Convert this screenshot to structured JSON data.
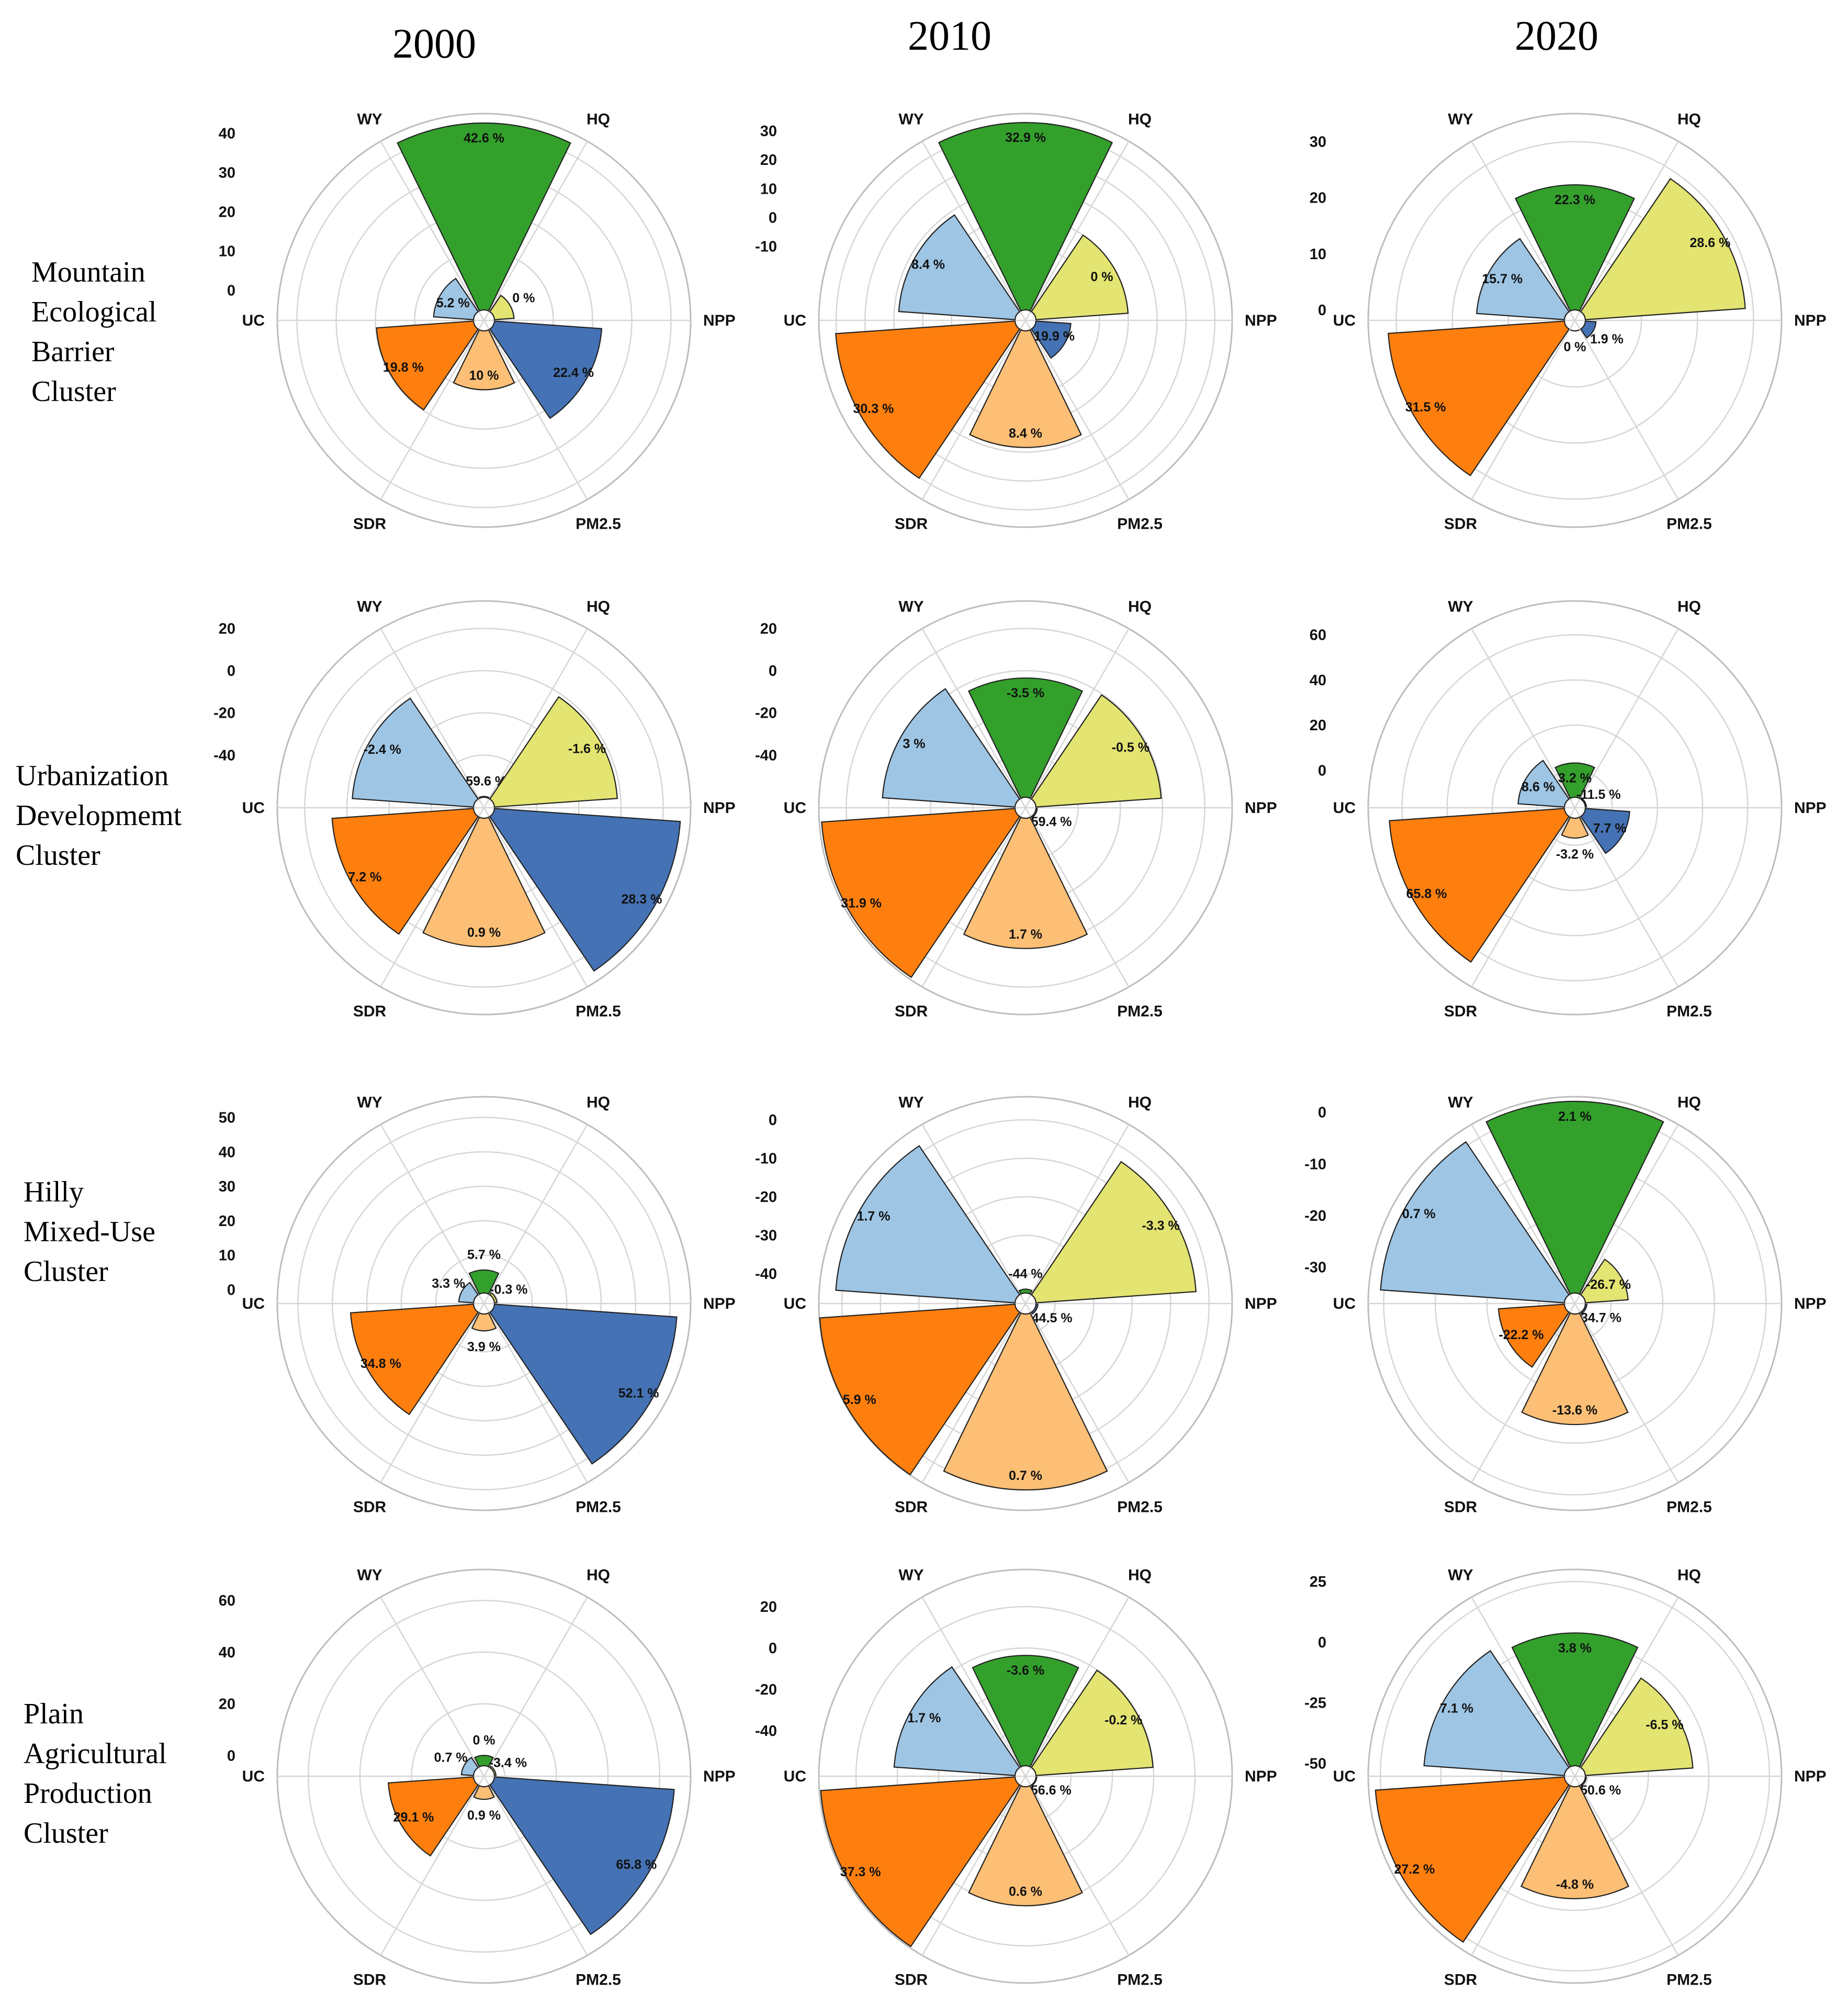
{
  "years": [
    "2000",
    "2010",
    "2020"
  ],
  "clusters": [
    {
      "label_lines": [
        "Mountain",
        "Ecological",
        "Barrier",
        "Cluster"
      ]
    },
    {
      "label_lines": [
        "Urbanization",
        "Developmemt",
        "Cluster"
      ]
    },
    {
      "label_lines": [
        "Hilly",
        "Mixed-Use",
        "Cluster"
      ]
    },
    {
      "label_lines": [
        "Plain",
        "Agricultural",
        "Production",
        "Cluster"
      ]
    }
  ],
  "colors": {
    "HQ": "#33a02c",
    "NPP": "#e3e471",
    "PM2.5": "#4572b4",
    "SDR": "#fcbf75",
    "UC": "#ff7f0e",
    "WY": "#9ec5e4"
  },
  "chart_data": [
    {
      "cluster": 0,
      "year": "2000",
      "type": "polar-bar",
      "axis_labels": [
        "HQ",
        "NPP",
        "PM2.5",
        "SDR",
        "UC",
        "WY"
      ],
      "values": [
        42.6,
        0,
        22.4,
        10,
        19.8,
        5.2
      ],
      "value_labels": [
        "42.6 %",
        "0 %",
        "22.4 %",
        "10 %",
        "19.8 %",
        "5.2 %"
      ],
      "radial_range": [
        -5,
        45
      ],
      "radial_ticks": [
        0,
        10,
        20,
        30,
        40
      ],
      "radial_tick_labels": [
        "0",
        "10",
        "20",
        "30",
        "40"
      ]
    },
    {
      "cluster": 0,
      "year": "2010",
      "type": "polar-bar",
      "axis_labels": [
        "HQ",
        "NPP",
        "PM2.5",
        "SDR",
        "UC",
        "WY"
      ],
      "values": [
        32.9,
        0,
        -19.9,
        8.4,
        30.3,
        8.4
      ],
      "value_labels": [
        "32.9 %",
        "0 %",
        "-19.9 %",
        "8.4 %",
        "30.3 %",
        "8.4 %"
      ],
      "radial_range": [
        -32,
        36
      ],
      "radial_ticks": [
        -10,
        0,
        10,
        20,
        30
      ],
      "radial_tick_labels": [
        "-10",
        "0",
        "10",
        "20",
        "30"
      ]
    },
    {
      "cluster": 0,
      "year": "2020",
      "type": "polar-bar",
      "axis_labels": [
        "HQ",
        "NPP",
        "PM2.5",
        "SDR",
        "UC",
        "WY"
      ],
      "values": [
        22.3,
        28.6,
        1.9,
        0,
        31.5,
        15.7
      ],
      "value_labels": [
        "22.3 %",
        "28.6 %",
        "1.9 %",
        "0 %",
        "31.5 %",
        "15.7 %"
      ],
      "radial_range": [
        0,
        35
      ],
      "radial_ticks": [
        0,
        10,
        20,
        30
      ],
      "radial_tick_labels": [
        "0",
        "10",
        "20",
        "30"
      ]
    },
    {
      "cluster": 1,
      "year": "2000",
      "type": "polar-bar",
      "axis_labels": [
        "HQ",
        "NPP",
        "PM2.5",
        "SDR",
        "UC",
        "WY"
      ],
      "values": [
        -59.6,
        -1.6,
        28.3,
        0.9,
        7.2,
        -2.4
      ],
      "value_labels": [
        "-59.6 %",
        "-1.6 %",
        "28.3 %",
        "0.9 %",
        "7.2 %",
        "-2.4 %"
      ],
      "radial_range": [
        -60,
        33
      ],
      "radial_ticks": [
        -40,
        -20,
        0,
        20
      ],
      "radial_tick_labels": [
        "-40",
        "-20",
        "0",
        "20"
      ]
    },
    {
      "cluster": 1,
      "year": "2010",
      "type": "polar-bar",
      "axis_labels": [
        "HQ",
        "NPP",
        "PM2.5",
        "SDR",
        "UC",
        "WY"
      ],
      "values": [
        -3.5,
        -0.5,
        -59.4,
        1.7,
        31.9,
        3
      ],
      "value_labels": [
        "-3.5 %",
        "-0.5 %",
        "-59.4 %",
        "1.7 %",
        "31.9 %",
        "3 %"
      ],
      "radial_range": [
        -60,
        33
      ],
      "radial_ticks": [
        -40,
        -20,
        0,
        20
      ],
      "radial_tick_labels": [
        "-40",
        "-20",
        "0",
        "20"
      ]
    },
    {
      "cluster": 1,
      "year": "2020",
      "type": "polar-bar",
      "axis_labels": [
        "HQ",
        "NPP",
        "PM2.5",
        "SDR",
        "UC",
        "WY"
      ],
      "values": [
        3.2,
        -11.5,
        7.7,
        -3.2,
        65.8,
        8.6
      ],
      "value_labels": [
        "3.2 %",
        "-11.5 %",
        "7.7 %",
        "-3.2 %",
        "65.8 %",
        "8.6 %"
      ],
      "radial_range": [
        -12,
        75
      ],
      "radial_ticks": [
        0,
        20,
        40,
        60
      ],
      "radial_tick_labels": [
        "0",
        "20",
        "40",
        "60"
      ]
    },
    {
      "cluster": 2,
      "year": "2000",
      "type": "polar-bar",
      "axis_labels": [
        "HQ",
        "NPP",
        "PM2.5",
        "SDR",
        "UC",
        "WY"
      ],
      "values": [
        5.7,
        -0.3,
        52.1,
        3.9,
        34.8,
        3.3
      ],
      "value_labels": [
        "5.7 %",
        "-0.3 %",
        "52.1 %",
        "3.9 %",
        "34.8 %",
        "3.3 %"
      ],
      "radial_range": [
        -1,
        56
      ],
      "radial_ticks": [
        0,
        10,
        20,
        30,
        40,
        50
      ],
      "radial_tick_labels": [
        "0",
        "10",
        "20",
        "30",
        "40",
        "50"
      ]
    },
    {
      "cluster": 2,
      "year": "2010",
      "type": "polar-bar",
      "axis_labels": [
        "HQ",
        "NPP",
        "PM2.5",
        "SDR",
        "UC",
        "WY"
      ],
      "values": [
        -44,
        -3.3,
        -44.5,
        0.7,
        5.9,
        1.7
      ],
      "value_labels": [
        "-44 %",
        "-3.3 %",
        "-44.5 %",
        "0.7 %",
        "5.9 %",
        "1.7 %"
      ],
      "radial_range": [
        -45,
        6
      ],
      "radial_ticks": [
        -40,
        -30,
        -20,
        -10,
        0
      ],
      "radial_tick_labels": [
        "-40",
        "-30",
        "-20",
        "-10",
        "0"
      ]
    },
    {
      "cluster": 2,
      "year": "2020",
      "type": "polar-bar",
      "axis_labels": [
        "HQ",
        "NPP",
        "PM2.5",
        "SDR",
        "UC",
        "WY"
      ],
      "values": [
        2.1,
        -26.7,
        -34.7,
        -13.6,
        -22.2,
        0.7
      ],
      "value_labels": [
        "2.1 %",
        "-26.7 %",
        "-34.7 %",
        "-13.6 %",
        "-22.2 %",
        "0.7 %"
      ],
      "radial_range": [
        -35,
        3
      ],
      "radial_ticks": [
        -30,
        -20,
        -10,
        0
      ],
      "radial_tick_labels": [
        "-30",
        "-20",
        "-10",
        "0"
      ]
    },
    {
      "cluster": 3,
      "year": "2000",
      "type": "polar-bar",
      "axis_labels": [
        "HQ",
        "NPP",
        "PM2.5",
        "SDR",
        "UC",
        "WY"
      ],
      "values": [
        0,
        -3.4,
        65.8,
        0.9,
        29.1,
        0.7
      ],
      "value_labels": [
        "0 %",
        "-3.4 %",
        "65.8 %",
        "0.9 %",
        "29.1 %",
        "0.7 %"
      ],
      "radial_range": [
        -4,
        72
      ],
      "radial_ticks": [
        0,
        20,
        40,
        60
      ],
      "radial_tick_labels": [
        "0",
        "20",
        "40",
        "60"
      ]
    },
    {
      "cluster": 3,
      "year": "2010",
      "type": "polar-bar",
      "axis_labels": [
        "HQ",
        "NPP",
        "PM2.5",
        "SDR",
        "UC",
        "WY"
      ],
      "values": [
        -3.6,
        -0.2,
        -56.6,
        0.6,
        37.3,
        1.7
      ],
      "value_labels": [
        "-3.6 %",
        "-0.2 %",
        "-56.6 %",
        "0.6 %",
        "37.3 %",
        "1.7 %"
      ],
      "radial_range": [
        -57,
        38
      ],
      "radial_ticks": [
        -40,
        -20,
        0,
        20
      ],
      "radial_tick_labels": [
        "-40",
        "-20",
        "0",
        "20"
      ]
    },
    {
      "cluster": 3,
      "year": "2020",
      "type": "polar-bar",
      "axis_labels": [
        "HQ",
        "NPP",
        "PM2.5",
        "SDR",
        "UC",
        "WY"
      ],
      "values": [
        3.8,
        -6.5,
        -50.6,
        -4.8,
        27.2,
        7.1
      ],
      "value_labels": [
        "3.8 %",
        "-6.5 %",
        "-50.6 %",
        "-4.8 %",
        "27.2 %",
        "7.1 %"
      ],
      "radial_range": [
        -51,
        30
      ],
      "radial_ticks": [
        -50,
        -25,
        0,
        25
      ],
      "radial_tick_labels": [
        "-50",
        "-25",
        "0",
        "25"
      ]
    }
  ]
}
